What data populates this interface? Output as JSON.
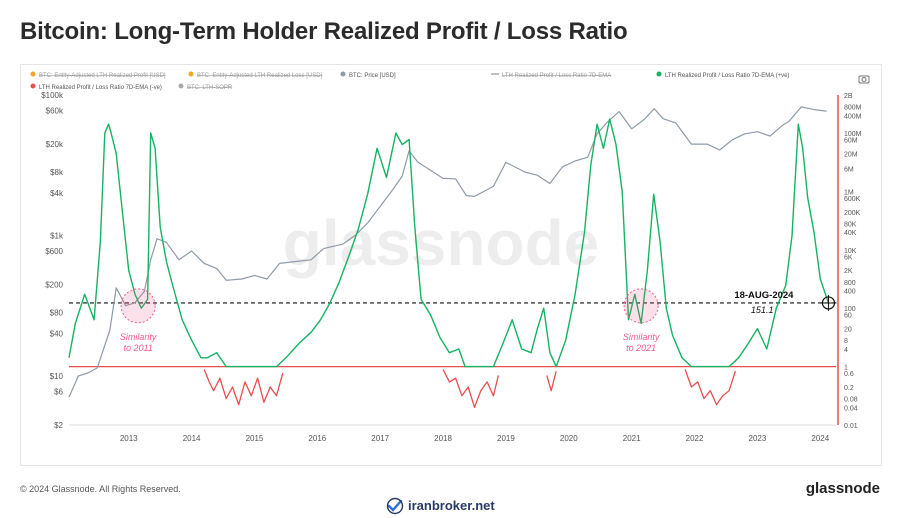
{
  "title": "Bitcoin: Long-Term Holder Realized Profit / Loss Ratio",
  "footer": {
    "copyright": "© 2024 Glassnode. All Rights Reserved.",
    "brand": "glassnode",
    "site": "iranbroker.net"
  },
  "watermark": "glassnode",
  "colors": {
    "price": "#8e9ba8",
    "ratio_pos": "#16b363",
    "ratio_neg": "#ea4e4e",
    "threshold": "#ea4e4e",
    "highlight": "#f05a8a",
    "axis_text": "#555555",
    "disabled": "#aaaaaa",
    "orange": "#f5a623"
  },
  "chart_data": {
    "type": "line",
    "title": "Bitcoin: Long-Term Holder Realized Profit / Loss Ratio",
    "legend": {
      "placement": "top",
      "items": [
        {
          "label": "BTC: Entity-Adjusted LTH Realized Profit [USD]",
          "color": "#f5a623",
          "disabled": true
        },
        {
          "label": "BTC: Entity-Adjusted LTH Realized Loss [USD]",
          "color": "#f5a623",
          "disabled": true
        },
        {
          "label": "BTC: Price [USD]",
          "color": "#8e9ba8",
          "disabled": false
        },
        {
          "label": "LTH Realized Profit / Loss Ratio 7D-EMA",
          "color": "#aaaaaa",
          "disabled": true
        },
        {
          "label": "LTH Realized Profit / Loss Ratio 7D-EMA (+ve)",
          "color": "#16b363",
          "disabled": false
        },
        {
          "label": "LTH Realized Profit / Loss Ratio 7D-EMA (-ve)",
          "color": "#ea4e4e",
          "disabled": false
        },
        {
          "label": "BTC: LTH-SOPR",
          "color": "#aaaaaa",
          "disabled": true
        }
      ]
    },
    "x_ticks": [
      "2013",
      "2014",
      "2015",
      "2016",
      "2017",
      "2018",
      "2019",
      "2020",
      "2021",
      "2022",
      "2023",
      "2024"
    ],
    "x_range": [
      2012.55,
      2024.75
    ],
    "left_axis": {
      "scale": "log",
      "range": [
        2,
        100000
      ],
      "ticks": [
        {
          "v": 100000,
          "label": "$100k"
        },
        {
          "v": 60000,
          "label": "$60k"
        },
        {
          "v": 20000,
          "label": "$20k"
        },
        {
          "v": 8000,
          "label": "$8k"
        },
        {
          "v": 4000,
          "label": "$4k"
        },
        {
          "v": 1000,
          "label": "$1k"
        },
        {
          "v": 600,
          "label": "$600"
        },
        {
          "v": 200,
          "label": "$200"
        },
        {
          "v": 80,
          "label": "$80"
        },
        {
          "v": 40,
          "label": "$40"
        },
        {
          "v": 10,
          "label": "$10"
        },
        {
          "v": 6,
          "label": "$6"
        },
        {
          "v": 2,
          "label": "$2"
        }
      ]
    },
    "right_axis": {
      "scale": "log",
      "range": [
        0.01,
        2000000000
      ],
      "ticks": [
        {
          "v": 2000000000,
          "label": "2B"
        },
        {
          "v": 800000000,
          "label": "800M"
        },
        {
          "v": 400000000,
          "label": "400M"
        },
        {
          "v": 100000000,
          "label": "100M"
        },
        {
          "v": 60000000,
          "label": "60M"
        },
        {
          "v": 20000000,
          "label": "20M"
        },
        {
          "v": 6000000,
          "label": "6M"
        },
        {
          "v": 1000000,
          "label": "1M"
        },
        {
          "v": 600000,
          "label": "600K"
        },
        {
          "v": 200000,
          "label": "200K"
        },
        {
          "v": 80000,
          "label": "80K"
        },
        {
          "v": 40000,
          "label": "40K"
        },
        {
          "v": 10000,
          "label": "10K"
        },
        {
          "v": 6000,
          "label": "6K"
        },
        {
          "v": 2000,
          "label": "2K"
        },
        {
          "v": 800,
          "label": "800"
        },
        {
          "v": 400,
          "label": "400"
        },
        {
          "v": 100,
          "label": "100"
        },
        {
          "v": 60,
          "label": "60"
        },
        {
          "v": 20,
          "label": "20"
        },
        {
          "v": 8,
          "label": "8"
        },
        {
          "v": 4,
          "label": "4"
        },
        {
          "v": 1,
          "label": "1"
        },
        {
          "v": 0.6,
          "label": "0.6"
        },
        {
          "v": 0.2,
          "label": "0.2"
        },
        {
          "v": 0.08,
          "label": "0.08"
        },
        {
          "v": 0.04,
          "label": "0.04"
        },
        {
          "v": 0.01,
          "label": "0.01"
        }
      ]
    },
    "threshold": 1,
    "reference_line": 151.1,
    "annotation": {
      "date": "18-AUG-2024",
      "value": "151.1",
      "x": 2024.63
    },
    "similarity_labels": [
      {
        "line1": "Similarity",
        "line2": "to 2011",
        "x": 2013.65,
        "y": 120
      },
      {
        "line1": "Similarity",
        "line2": "to 2021",
        "x": 2021.65,
        "y": 120
      }
    ],
    "series": [
      {
        "name": "BTC: Price [USD]",
        "axis": "left",
        "x": [
          2012.55,
          2012.7,
          2012.85,
          2013.0,
          2013.2,
          2013.3,
          2013.45,
          2013.6,
          2013.75,
          2013.85,
          2013.95,
          2014.1,
          2014.3,
          2014.5,
          2014.7,
          2014.9,
          2015.05,
          2015.3,
          2015.5,
          2015.7,
          2015.9,
          2016.1,
          2016.4,
          2016.6,
          2016.9,
          2017.1,
          2017.3,
          2017.5,
          2017.7,
          2017.85,
          2017.96,
          2018.1,
          2018.3,
          2018.5,
          2018.7,
          2018.87,
          2019.0,
          2019.3,
          2019.5,
          2019.8,
          2020.0,
          2020.2,
          2020.4,
          2020.6,
          2020.8,
          2020.95,
          2021.1,
          2021.3,
          2021.5,
          2021.7,
          2021.86,
          2022.0,
          2022.2,
          2022.45,
          2022.7,
          2022.9,
          2023.1,
          2023.3,
          2023.5,
          2023.7,
          2023.9,
          2024.0,
          2024.2,
          2024.4,
          2024.6
        ],
        "y": [
          5,
          10,
          11,
          13,
          45,
          180,
          100,
          110,
          160,
          450,
          900,
          800,
          450,
          600,
          400,
          340,
          230,
          240,
          270,
          240,
          400,
          420,
          450,
          650,
          750,
          1000,
          1500,
          2600,
          4500,
          7000,
          16000,
          11000,
          8500,
          6500,
          6400,
          3700,
          3600,
          5000,
          11000,
          8000,
          7200,
          5500,
          9500,
          11500,
          13000,
          28000,
          40000,
          58000,
          33000,
          45000,
          64000,
          46000,
          40000,
          20000,
          20000,
          16500,
          23000,
          28000,
          30000,
          26000,
          37000,
          42000,
          68000,
          62000,
          59000
        ]
      },
      {
        "name": "LTH Realized Profit / Loss Ratio 7D-EMA (+ve)",
        "axis": "right",
        "x": [
          2012.55,
          2012.65,
          2012.8,
          2012.95,
          2013.05,
          2013.12,
          2013.18,
          2013.22,
          2013.3,
          2013.4,
          2013.5,
          2013.6,
          2013.7,
          2013.8,
          2013.85,
          2013.92,
          2014.0,
          2014.1,
          2014.2,
          2014.35,
          2014.5,
          2014.65,
          2014.75,
          2014.9,
          2015.05,
          2015.2,
          2015.4,
          2015.6,
          2015.75,
          2015.85,
          2016.0,
          2016.2,
          2016.4,
          2016.55,
          2016.7,
          2016.85,
          2017.0,
          2017.15,
          2017.3,
          2017.45,
          2017.6,
          2017.75,
          2017.85,
          2017.96,
          2018.05,
          2018.15,
          2018.3,
          2018.45,
          2018.6,
          2018.75,
          2018.85,
          2018.95,
          2019.1,
          2019.3,
          2019.45,
          2019.6,
          2019.75,
          2019.9,
          2020.0,
          2020.1,
          2020.2,
          2020.3,
          2020.45,
          2020.6,
          2020.75,
          2020.85,
          2020.95,
          2021.05,
          2021.15,
          2021.25,
          2021.35,
          2021.45,
          2021.55,
          2021.65,
          2021.75,
          2021.85,
          2021.95,
          2022.05,
          2022.15,
          2022.3,
          2022.45,
          2022.6,
          2022.75,
          2022.9,
          2023.05,
          2023.2,
          2023.35,
          2023.5,
          2023.65,
          2023.8,
          2023.95,
          2024.05,
          2024.15,
          2024.22,
          2024.3,
          2024.4,
          2024.5,
          2024.63
        ],
        "y": [
          2,
          30,
          300,
          40,
          20000,
          100000000,
          200000000,
          100000000,
          20000000,
          200000,
          2000,
          300,
          100,
          200,
          100000000,
          30000000,
          60000,
          4000,
          600,
          40,
          8,
          2,
          2,
          3,
          1,
          1,
          1,
          1,
          1,
          1,
          2,
          6,
          15,
          40,
          150,
          800,
          6000,
          50000,
          800000,
          30000000,
          3000000,
          100000000,
          40000000,
          60000000,
          60000,
          200,
          60,
          10,
          3,
          4,
          1,
          1,
          1,
          1,
          6,
          40,
          4,
          3,
          20,
          100,
          3,
          1,
          8,
          300,
          40000,
          8000000,
          200000000,
          30000000,
          300000000,
          40000000,
          1000000,
          40,
          300,
          30,
          2000,
          800000,
          20000,
          100,
          12,
          2,
          1,
          1,
          1,
          1,
          1,
          2,
          6,
          20,
          4,
          100,
          600,
          30000,
          200000000,
          30000000,
          600000,
          40000,
          1000,
          151.1
        ]
      },
      {
        "name": "LTH Realized Profit / Loss Ratio 7D-EMA (-ve)",
        "axis": "right",
        "x": [
          2014.7,
          2014.78,
          2014.85,
          2014.95,
          2015.05,
          2015.15,
          2015.25,
          2015.35,
          2015.45,
          2015.55,
          2015.65,
          2015.75,
          2015.85,
          2015.95,
          2018.5,
          2018.6,
          2018.7,
          2018.8,
          2018.9,
          2019.0,
          2019.1,
          2019.2,
          2019.3,
          2019.38,
          2020.15,
          2020.22,
          2020.3,
          2022.35,
          2022.45,
          2022.55,
          2022.65,
          2022.75,
          2022.85,
          2022.95,
          2023.05,
          2023.15
        ],
        "y": [
          0.8,
          0.3,
          0.15,
          0.4,
          0.08,
          0.2,
          0.05,
          0.3,
          0.1,
          0.4,
          0.06,
          0.2,
          0.1,
          0.6,
          0.8,
          0.3,
          0.4,
          0.1,
          0.2,
          0.04,
          0.15,
          0.3,
          0.1,
          0.5,
          0.5,
          0.15,
          0.7,
          0.8,
          0.2,
          0.3,
          0.08,
          0.15,
          0.05,
          0.1,
          0.15,
          0.7
        ]
      }
    ]
  }
}
